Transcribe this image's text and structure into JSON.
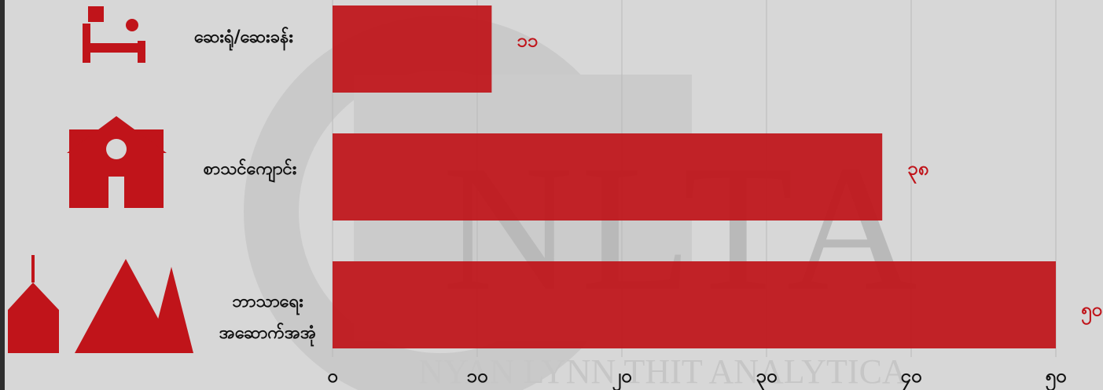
{
  "chart_data": {
    "type": "hbar",
    "categories": [
      "ဆေးရုံ/ဆေးခန်း",
      "စာသင်ကျောင်း",
      "ဘာသာရေး\nအဆောက်အအုံ"
    ],
    "values": [
      11,
      38,
      50
    ],
    "value_labels": [
      "၁၁",
      "၃၈",
      "၅၀"
    ],
    "color": "#c0141a",
    "xlim": [
      0,
      50
    ],
    "xticks": [
      {
        "value": 0,
        "label": "၀"
      },
      {
        "value": 10,
        "label": "၁၀"
      },
      {
        "value": 20,
        "label": "၂၀"
      },
      {
        "value": 30,
        "label": "၃၀"
      },
      {
        "value": 40,
        "label": "၄၀"
      },
      {
        "value": 50,
        "label": "၅၀"
      }
    ],
    "grid": true,
    "watermark": "NLTA",
    "watermark_caption": "NYAN LYNN THIT ANALYTICA"
  }
}
